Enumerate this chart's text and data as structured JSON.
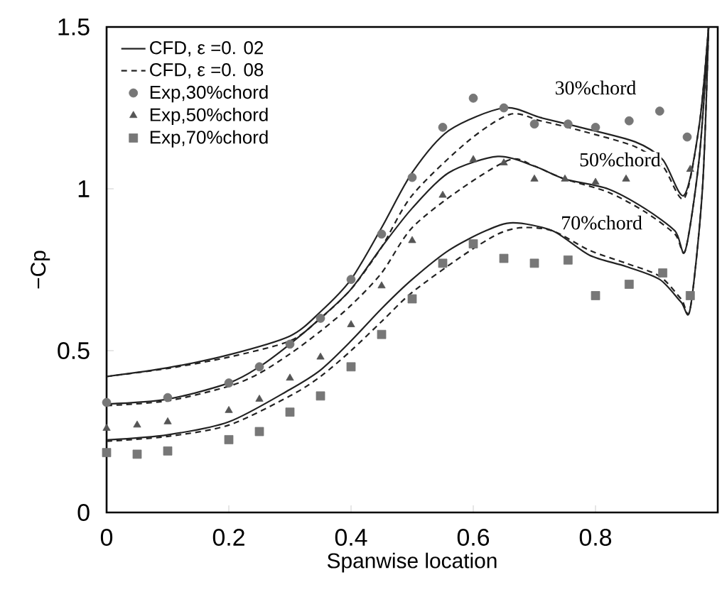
{
  "chart_data": {
    "type": "line",
    "xlabel": "Spanwise location",
    "ylabel": "−Cp",
    "xlim": [
      0,
      1
    ],
    "ylim": [
      0,
      1.5
    ],
    "xticks": [
      0,
      0.2,
      0.4,
      0.6,
      0.8
    ],
    "yticks": [
      0,
      0.5,
      1,
      1.5
    ],
    "grid": false,
    "legend": "top left",
    "series": [
      {
        "name": "CFD, ε =0. 02",
        "type": "line",
        "color": "#222222",
        "marker": "none",
        "line_style": "solid",
        "x": [
          0,
          0.1,
          0.2,
          0.3,
          0.35,
          0.4,
          0.45,
          0.5,
          0.56,
          0.65,
          0.71,
          0.775,
          0.865,
          0.91,
          0.945,
          0.97,
          0.985
        ],
        "values": [
          0.42,
          0.447,
          0.487,
          0.545,
          0.62,
          0.72,
          0.88,
          1.05,
          1.18,
          1.25,
          1.22,
          1.19,
          1.145,
          1.09,
          0.98,
          1.2,
          1.5
        ]
      },
      {
        "name": "CFD, ε =0. 08",
        "type": "line",
        "color": "#222222",
        "marker": "none",
        "line_style": "dashed",
        "x": [
          0,
          0.1,
          0.2,
          0.3,
          0.35,
          0.4,
          0.45,
          0.5,
          0.59,
          0.66,
          0.71,
          0.775,
          0.865,
          0.91,
          0.945,
          0.97,
          0.985
        ],
        "values": [
          0.42,
          0.445,
          0.48,
          0.53,
          0.6,
          0.69,
          0.82,
          0.98,
          1.145,
          1.23,
          1.21,
          1.18,
          1.13,
          1.07,
          0.97,
          1.2,
          1.5
        ]
      },
      {
        "name": "Exp,30%chord",
        "type": "scatter",
        "color": "#777777",
        "marker": "circle",
        "line_style": "none",
        "x": [
          0,
          0.1,
          0.2,
          0.25,
          0.3,
          0.35,
          0.4,
          0.45,
          0.5,
          0.55,
          0.6,
          0.65,
          0.7,
          0.755,
          0.8,
          0.855,
          0.905,
          0.95
        ],
        "values": [
          0.34,
          0.355,
          0.4,
          0.45,
          0.52,
          0.6,
          0.72,
          0.86,
          1.035,
          1.19,
          1.28,
          1.25,
          1.2,
          1.2,
          1.19,
          1.21,
          1.24,
          1.16
        ]
      },
      {
        "name": "Exp,50%chord",
        "type": "scatter",
        "color": "#555555",
        "marker": "triangle",
        "line_style": "none",
        "x": [
          0,
          0.05,
          0.1,
          0.2,
          0.25,
          0.3,
          0.35,
          0.4,
          0.45,
          0.5,
          0.55,
          0.6,
          0.65,
          0.7,
          0.75,
          0.8,
          0.85,
          0.955
        ],
        "values": [
          0.26,
          0.27,
          0.28,
          0.315,
          0.35,
          0.415,
          0.48,
          0.58,
          0.7,
          0.84,
          0.98,
          1.09,
          1.08,
          1.03,
          1.03,
          1.02,
          1.03,
          1.06
        ]
      },
      {
        "name": "Exp,70%chord",
        "type": "scatter",
        "color": "#777777",
        "marker": "square",
        "line_style": "none",
        "x": [
          0,
          0.05,
          0.1,
          0.2,
          0.25,
          0.3,
          0.35,
          0.4,
          0.45,
          0.5,
          0.55,
          0.6,
          0.65,
          0.7,
          0.755,
          0.8,
          0.855,
          0.91,
          0.955
        ],
        "values": [
          0.185,
          0.18,
          0.19,
          0.225,
          0.25,
          0.31,
          0.36,
          0.45,
          0.55,
          0.66,
          0.77,
          0.83,
          0.785,
          0.77,
          0.78,
          0.67,
          0.705,
          0.74,
          0.67
        ]
      },
      {
        "type": "line",
        "color": "#222222",
        "marker": "none",
        "line_style": "solid",
        "x": [
          0,
          0.1,
          0.2,
          0.25,
          0.3,
          0.35,
          0.4,
          0.45,
          0.5,
          0.56,
          0.64,
          0.7,
          0.75,
          0.82,
          0.88,
          0.93,
          0.947,
          0.97,
          0.985
        ],
        "values": [
          0.335,
          0.35,
          0.4,
          0.45,
          0.52,
          0.6,
          0.69,
          0.82,
          0.94,
          1.05,
          1.1,
          1.07,
          1.03,
          1.0,
          0.94,
          0.87,
          0.81,
          1.1,
          1.5
        ]
      },
      {
        "type": "line",
        "color": "#222222",
        "marker": "none",
        "line_style": "dashed",
        "x": [
          0,
          0.1,
          0.2,
          0.25,
          0.3,
          0.35,
          0.4,
          0.45,
          0.5,
          0.58,
          0.66,
          0.7,
          0.75,
          0.82,
          0.88,
          0.93,
          0.947,
          0.97,
          0.985
        ],
        "values": [
          0.33,
          0.345,
          0.39,
          0.43,
          0.49,
          0.56,
          0.64,
          0.74,
          0.88,
          1.0,
          1.09,
          1.07,
          1.03,
          0.99,
          0.93,
          0.86,
          0.81,
          1.1,
          1.5
        ]
      },
      {
        "type": "line",
        "color": "#222222",
        "marker": "none",
        "line_style": "solid",
        "x": [
          0,
          0.1,
          0.2,
          0.3,
          0.35,
          0.4,
          0.45,
          0.5,
          0.56,
          0.62,
          0.665,
          0.73,
          0.79,
          0.85,
          0.905,
          0.94,
          0.955,
          0.975,
          0.985
        ],
        "values": [
          0.224,
          0.24,
          0.28,
          0.38,
          0.44,
          0.53,
          0.63,
          0.72,
          0.81,
          0.87,
          0.895,
          0.87,
          0.795,
          0.76,
          0.72,
          0.65,
          0.63,
          1.0,
          1.5
        ]
      },
      {
        "type": "line",
        "color": "#222222",
        "marker": "none",
        "line_style": "dashed",
        "x": [
          0,
          0.1,
          0.2,
          0.3,
          0.35,
          0.4,
          0.45,
          0.5,
          0.58,
          0.64,
          0.68,
          0.73,
          0.79,
          0.85,
          0.905,
          0.94,
          0.955,
          0.975,
          0.985
        ],
        "values": [
          0.22,
          0.235,
          0.27,
          0.36,
          0.42,
          0.5,
          0.59,
          0.68,
          0.79,
          0.86,
          0.88,
          0.87,
          0.81,
          0.77,
          0.73,
          0.66,
          0.63,
          1.0,
          1.5
        ]
      }
    ],
    "annotations": [
      "30%chord",
      "50%chord",
      "70%chord"
    ]
  }
}
